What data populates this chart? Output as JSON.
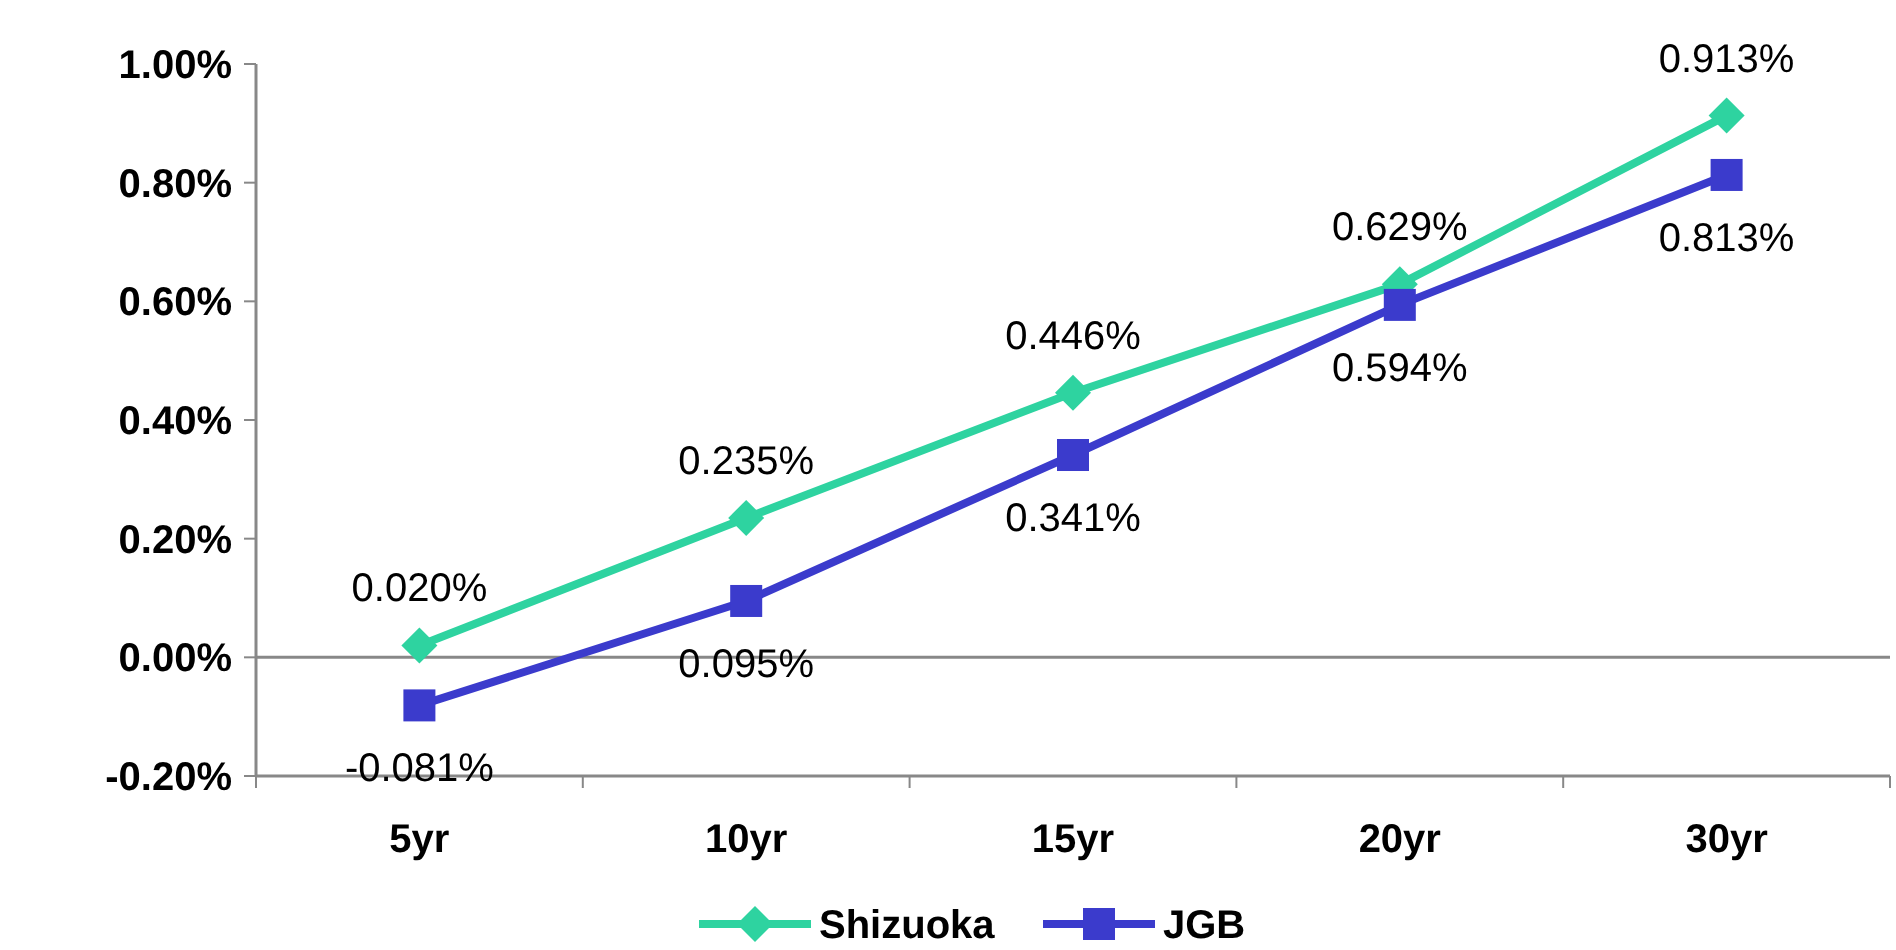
{
  "chart_data": {
    "type": "line",
    "categories": [
      "5yr",
      "10yr",
      "15yr",
      "20yr",
      "30yr"
    ],
    "series": [
      {
        "name": "Shizuoka",
        "color": "#2ed3a0",
        "marker": "diamond",
        "values": [
          0.02,
          0.235,
          0.446,
          0.629,
          0.913
        ],
        "value_labels": [
          "0.020%",
          "0.235%",
          "0.446%",
          "0.629%",
          "0.913%"
        ]
      },
      {
        "name": "JGB",
        "color": "#3b3bcc",
        "marker": "square",
        "values": [
          -0.081,
          0.095,
          0.341,
          0.594,
          0.813
        ],
        "value_labels": [
          "-0.081%",
          "0.095%",
          "0.341%",
          "0.594%",
          "0.813%"
        ]
      }
    ],
    "ylim": [
      -0.2,
      1.0
    ],
    "yticks": [
      {
        "value": -0.2,
        "label": "-0.20%"
      },
      {
        "value": 0,
        "label": "0.00%"
      },
      {
        "value": 0.2,
        "label": "0.20%"
      },
      {
        "value": 0.4,
        "label": "0.40%"
      },
      {
        "value": 0.6,
        "label": "0.60%"
      },
      {
        "value": 0.8,
        "label": "0.80%"
      },
      {
        "value": 1.0,
        "label": "1.00%"
      }
    ],
    "grid": false,
    "legend": "bottom",
    "ref_lines": [
      {
        "axis": "y",
        "value": 0,
        "color": "#888888"
      }
    ]
  }
}
